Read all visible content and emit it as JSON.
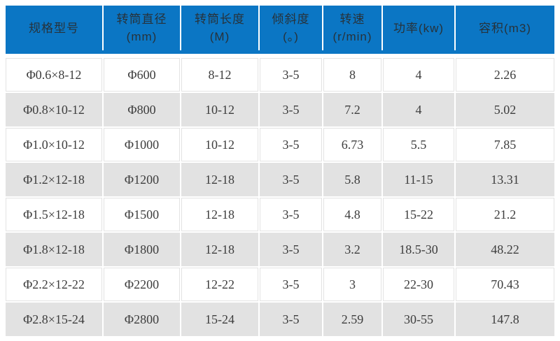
{
  "colors": {
    "header_bg": "#0b76c4",
    "header_text": "#27323a",
    "row_bg": "#ffffff",
    "row_alt_bg": "#e2e2e2",
    "cell_text": "#3d3d3d",
    "cell_border": "#e3e3e3"
  },
  "table": {
    "headers": [
      {
        "lines": [
          "规格型号"
        ]
      },
      {
        "lines": [
          "转筒直径",
          "(mm)"
        ]
      },
      {
        "lines": [
          "转筒长度",
          "(M)"
        ]
      },
      {
        "lines": [
          "倾斜度",
          "(。)"
        ]
      },
      {
        "lines": [
          "转速",
          "(r/min)"
        ]
      },
      {
        "lines": [
          "功率(kw)"
        ]
      },
      {
        "lines": [
          "容积(m3)"
        ]
      }
    ],
    "rows": [
      [
        "Φ0.6×8-12",
        "Φ600",
        "8-12",
        "3-5",
        "8",
        "4",
        "2.26"
      ],
      [
        "Φ0.8×10-12",
        "Φ800",
        "10-12",
        "3-5",
        "7.2",
        "4",
        "5.02"
      ],
      [
        "Φ1.0×10-12",
        "Φ1000",
        "10-12",
        "3-5",
        "6.73",
        "5.5",
        "7.85"
      ],
      [
        "Φ1.2×12-18",
        "Φ1200",
        "12-18",
        "3-5",
        "5.8",
        "11-15",
        "13.31"
      ],
      [
        "Φ1.5×12-18",
        "Φ1500",
        "12-18",
        "3-5",
        "4.8",
        "15-22",
        "21.2"
      ],
      [
        "Φ1.8×12-18",
        "Φ1800",
        "12-18",
        "3-5",
        "3.2",
        "18.5-30",
        "48.22"
      ],
      [
        "Φ2.2×12-22",
        "Φ2200",
        "12-22",
        "3-5",
        "3",
        "22-30",
        "70.43"
      ],
      [
        "Φ2.8×15-24",
        "Φ2800",
        "15-24",
        "3-5",
        "2.59",
        "30-55",
        "147.8"
      ]
    ]
  },
  "chart_data": {
    "type": "table",
    "title": "",
    "columns": [
      "规格型号",
      "转筒直径 (mm)",
      "转筒长度 (M)",
      "倾斜度 (。)",
      "转速 (r/min)",
      "功率(kw)",
      "容积(m3)"
    ],
    "rows": [
      [
        "Φ0.6×8-12",
        "Φ600",
        "8-12",
        "3-5",
        "8",
        "4",
        "2.26"
      ],
      [
        "Φ0.8×10-12",
        "Φ800",
        "10-12",
        "3-5",
        "7.2",
        "4",
        "5.02"
      ],
      [
        "Φ1.0×10-12",
        "Φ1000",
        "10-12",
        "3-5",
        "6.73",
        "5.5",
        "7.85"
      ],
      [
        "Φ1.2×12-18",
        "Φ1200",
        "12-18",
        "3-5",
        "5.8",
        "11-15",
        "13.31"
      ],
      [
        "Φ1.5×12-18",
        "Φ1500",
        "12-18",
        "3-5",
        "4.8",
        "15-22",
        "21.2"
      ],
      [
        "Φ1.8×12-18",
        "Φ1800",
        "12-18",
        "3-5",
        "3.2",
        "18.5-30",
        "48.22"
      ],
      [
        "Φ2.2×12-22",
        "Φ2200",
        "12-22",
        "3-5",
        "3",
        "22-30",
        "70.43"
      ],
      [
        "Φ2.8×15-24",
        "Φ2800",
        "15-24",
        "3-5",
        "2.59",
        "30-55",
        "147.8"
      ]
    ]
  }
}
